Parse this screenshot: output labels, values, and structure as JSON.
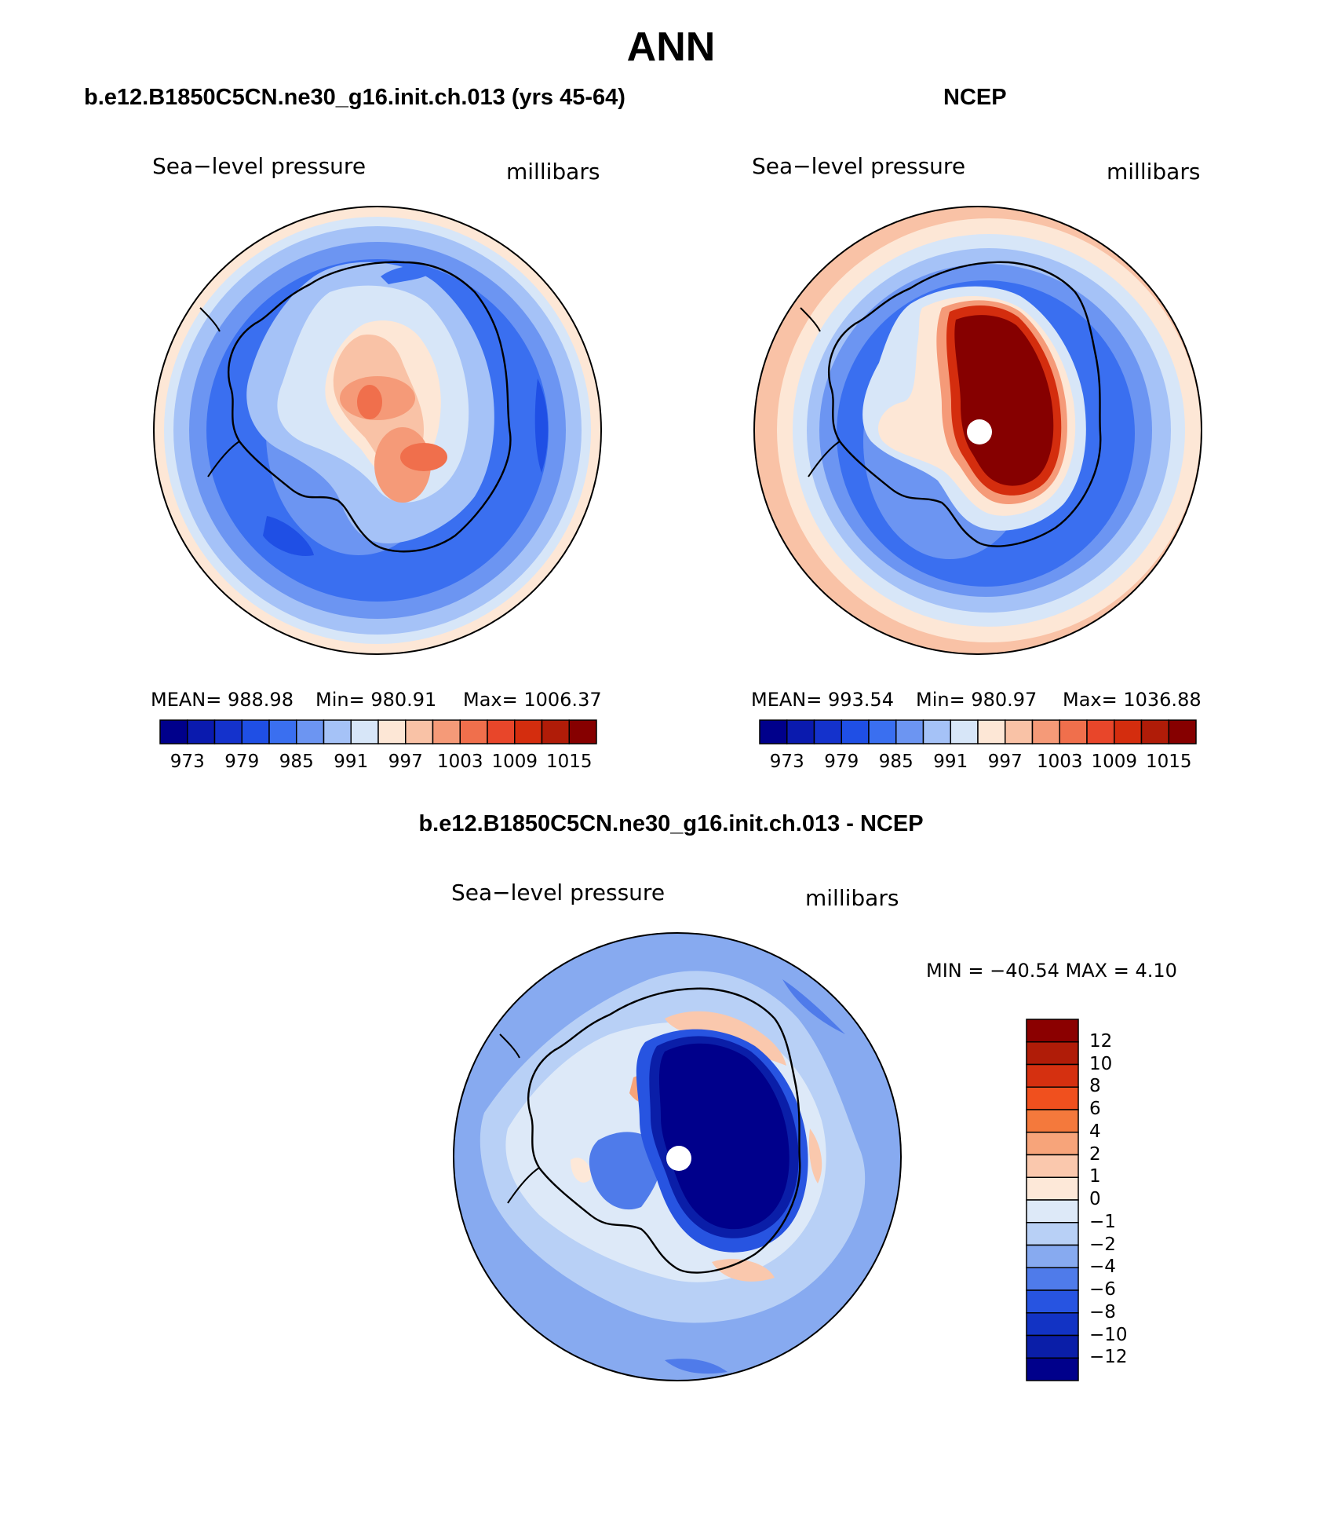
{
  "page": {
    "title": "ANN"
  },
  "panels": [
    {
      "id": "model",
      "case_title": "b.e12.B1850C5CN.ne30_g16.init.ch.013 (yrs 45-64)",
      "variable_label": "Sea−level pressure",
      "units": "millibars",
      "mean_text": "MEAN=  988.98",
      "min_text": "Min=  980.91",
      "max_text": "Max=  1006.37"
    },
    {
      "id": "obs",
      "case_title": "NCEP",
      "variable_label": "Sea−level pressure",
      "units": "millibars",
      "mean_text": "MEAN=  993.54",
      "min_text": "Min=  980.97",
      "max_text": "Max=  1036.88"
    },
    {
      "id": "diff",
      "case_title": "b.e12.B1850C5CN.ne30_g16.init.ch.013 - NCEP",
      "variable_label": "Sea−level pressure",
      "units": "millibars",
      "minmax_text": "MIN  =  −40.54  MAX  =     4.10"
    }
  ],
  "colorbars": {
    "abs": {
      "orientation": "horizontal",
      "tick_labels": [
        "973",
        "979",
        "985",
        "991",
        "997",
        "1003",
        "1009",
        "1015"
      ],
      "colors": [
        "#00008b",
        "#0a1aae",
        "#1432cc",
        "#1f4fe5",
        "#3a6ff0",
        "#6c95f2",
        "#a5c2f7",
        "#d7e6f8",
        "#fde7d6",
        "#f9c2a6",
        "#f59a78",
        "#f06f4c",
        "#e8462a",
        "#d42d0e",
        "#b01c08",
        "#860000"
      ]
    },
    "diff": {
      "orientation": "vertical",
      "tick_labels": [
        "12",
        "10",
        "8",
        "6",
        "4",
        "2",
        "1",
        "0",
        "−1",
        "−2",
        "−4",
        "−6",
        "−8",
        "−10",
        "−12"
      ],
      "colors": [
        "#8b0000",
        "#b01c08",
        "#d53010",
        "#f0501e",
        "#f4793c",
        "#f7a47a",
        "#fac8ad",
        "#fde8d8",
        "#dde9f8",
        "#b8d0f6",
        "#87aaf0",
        "#4f7bea",
        "#2754e1",
        "#1233c4",
        "#0a1ea8",
        "#00008b"
      ]
    }
  },
  "legend_colors": {
    "ocean_low": "#3766e6",
    "ocean_mid": "#7ea3f0",
    "ocean_light": "#b9d1f6",
    "coast": "#000000",
    "pole_marker": "#ffffff"
  }
}
